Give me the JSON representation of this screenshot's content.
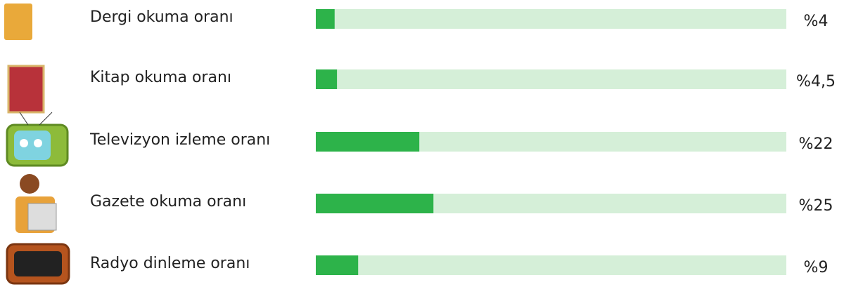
{
  "chart_data": {
    "type": "bar",
    "orientation": "horizontal",
    "categories": [
      "Dergi okuma oranı",
      "Kitap okuma oranı",
      "Televizyon izleme oranı",
      "Gazete okuma oranı",
      "Radyo dinleme oranı"
    ],
    "values": [
      4,
      4.5,
      22,
      25,
      9
    ],
    "value_labels": [
      "%4",
      "%4,5",
      "%22",
      "%25",
      "%9"
    ],
    "color": "#2db34a",
    "track_color": "#d5efd8",
    "xlim": [
      0,
      100
    ]
  }
}
